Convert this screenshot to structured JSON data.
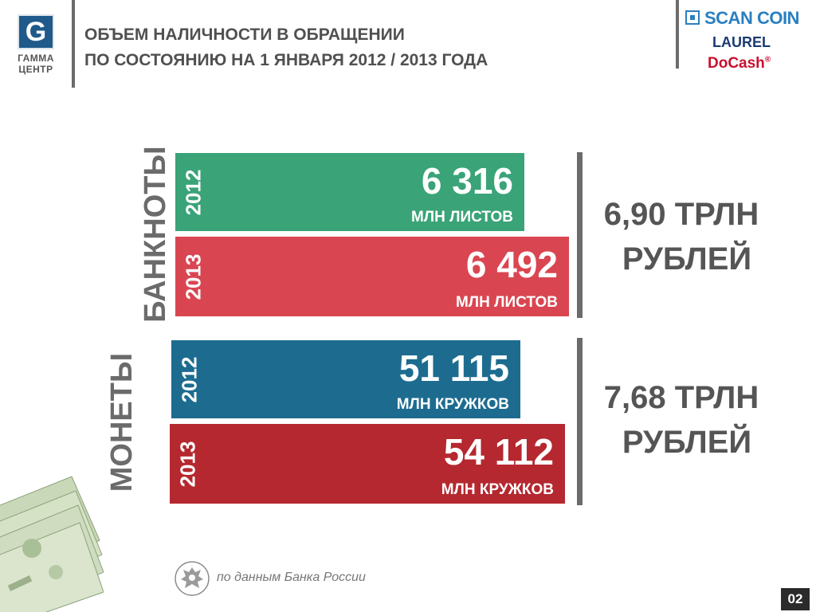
{
  "logo": {
    "letter": "G",
    "line1": "ГАММА",
    "line2": "ЦЕНТР"
  },
  "header": {
    "title_line1": "ОБЪЕМ НАЛИЧНОСТИ В ОБРАЩЕНИИ",
    "title_line2": "ПО СОСТОЯНИЮ НА 1 ЯНВАРЯ 2012 / 2013 ГОДА"
  },
  "brands": {
    "scan_coin": "SCAN COIN",
    "laurel": "LAUREL",
    "docash": "DoCash",
    "registered": "®"
  },
  "banknotes": {
    "label": "БАНКНОТЫ",
    "rows": [
      {
        "year": "2012",
        "value": "6 316",
        "unit": "МЛН ЛИСТОВ",
        "color": "#3aa378"
      },
      {
        "year": "2013",
        "value": "6 492",
        "unit": "МЛН ЛИСТОВ",
        "color": "#d94651"
      }
    ],
    "total_line1": "6,90 ТРЛН",
    "total_line2": "РУБЛЕЙ"
  },
  "coins": {
    "label": "МОНЕТЫ",
    "rows": [
      {
        "year": "2012",
        "value": "51 115",
        "unit": "МЛН КРУЖКОВ",
        "color": "#1d6c90"
      },
      {
        "year": "2013",
        "value": "54 112",
        "unit": "МЛН КРУЖКОВ",
        "color": "#b5282f"
      }
    ],
    "total_line1": "7,68 ТРЛН",
    "total_line2": "РУБЛЕЙ"
  },
  "footer": {
    "source": "по данным Банка России",
    "page_number": "02"
  }
}
